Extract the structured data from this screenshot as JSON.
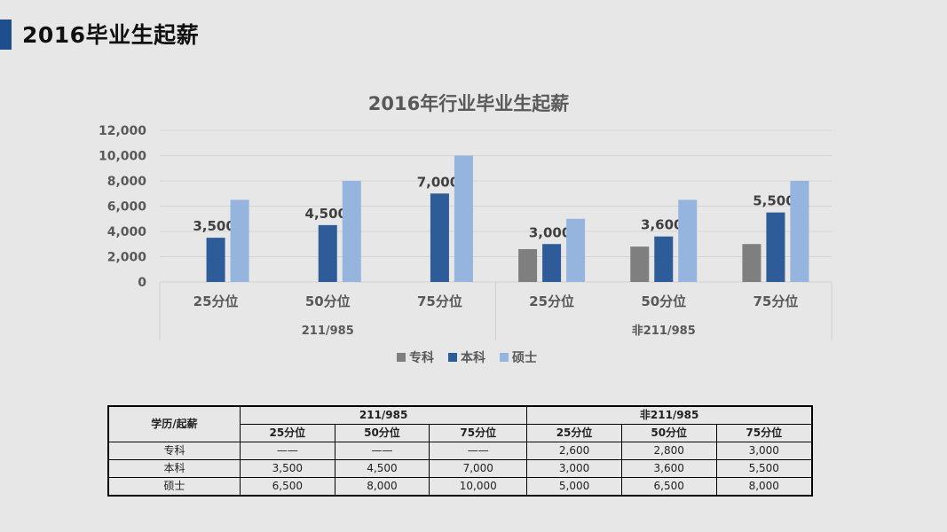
{
  "page": {
    "title": "2016毕业生起薪",
    "accent_color": "#1f4e8c"
  },
  "chart_data": {
    "type": "bar",
    "title": "2016年行业毕业生起薪",
    "ylim": [
      0,
      12000
    ],
    "yticks": [
      "0",
      "2,000",
      "4,000",
      "6,000",
      "8,000",
      "10,000",
      "12,000"
    ],
    "grid": true,
    "legend_position": "bottom",
    "groups": [
      {
        "label": "211/985",
        "categories": [
          "25分位",
          "50分位",
          "75分位"
        ]
      },
      {
        "label": "非211/985",
        "categories": [
          "25分位",
          "50分位",
          "75分位"
        ]
      }
    ],
    "series": [
      {
        "name": "专科",
        "color": "#7f7f7f",
        "values": [
          null,
          null,
          null,
          2600,
          2800,
          3000
        ],
        "labels": [
          "",
          "",
          "",
          "",
          "",
          ""
        ]
      },
      {
        "name": "本科",
        "color": "#2e5c99",
        "values": [
          3500,
          4500,
          7000,
          3000,
          3600,
          5500
        ],
        "labels": [
          "3,500",
          "4,500",
          "7,000",
          "3,000",
          "3,600",
          "5,500"
        ]
      },
      {
        "name": "硕士",
        "color": "#95b4de",
        "values": [
          6500,
          8000,
          10000,
          5000,
          6500,
          8000
        ],
        "labels": [
          "",
          "",
          "",
          "",
          "",
          ""
        ]
      }
    ]
  },
  "table": {
    "corner": "学历/起薪",
    "group_headers": [
      "211/985",
      "非211/985"
    ],
    "sub_headers": [
      "25分位",
      "50分位",
      "75分位",
      "25分位",
      "50分位",
      "75分位"
    ],
    "rows": [
      {
        "label": "专科",
        "cells": [
          "——",
          "——",
          "——",
          "2,600",
          "2,800",
          "3,000"
        ]
      },
      {
        "label": "本科",
        "cells": [
          "3,500",
          "4,500",
          "7,000",
          "3,000",
          "3,600",
          "5,500"
        ]
      },
      {
        "label": "硕士",
        "cells": [
          "6,500",
          "8,000",
          "10,000",
          "5,000",
          "6,500",
          "8,000"
        ]
      }
    ]
  }
}
